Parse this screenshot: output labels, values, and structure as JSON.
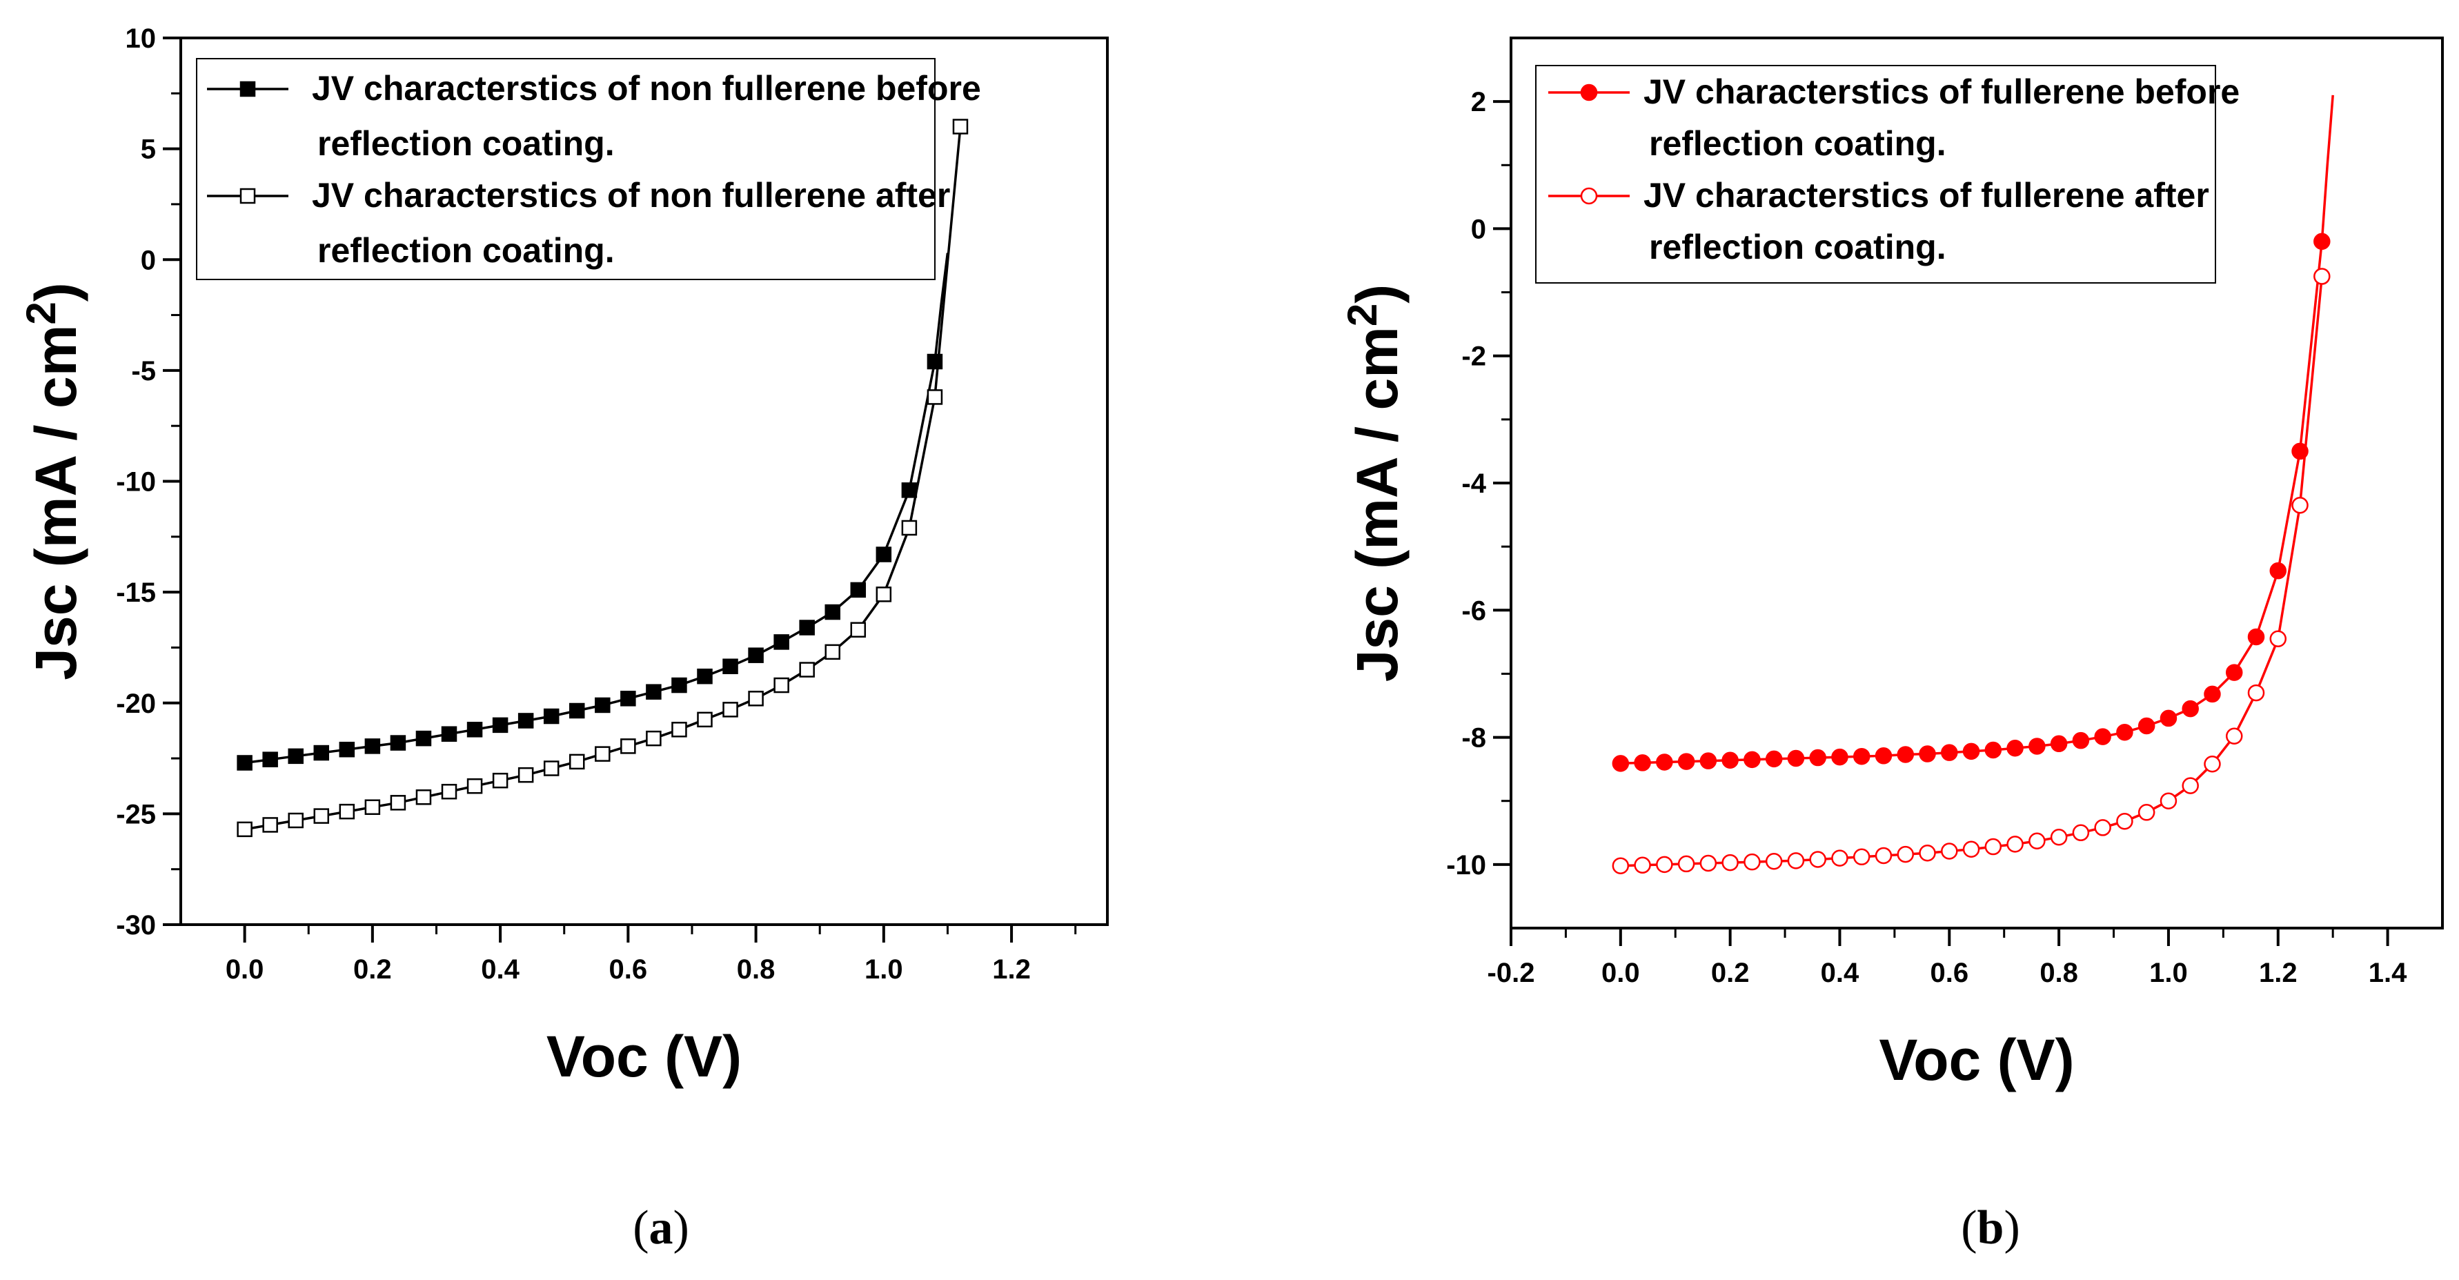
{
  "chart_data": [
    {
      "type": "line",
      "panel": "a",
      "xlabel": "Voc (V)",
      "ylabel": "Jsc (mA / cm",
      "ylabel_sup": "2",
      "ylabel_close": ")",
      "xlim": [
        -0.1,
        1.35
      ],
      "ylim": [
        -30,
        10
      ],
      "xticks": [
        0.0,
        0.2,
        0.4,
        0.6,
        0.8,
        1.0,
        1.2
      ],
      "xtick_labels": [
        "0.0",
        "0.2",
        "0.4",
        "0.6",
        "0.8",
        "1.0",
        "1.2"
      ],
      "yticks": [
        -30,
        -25,
        -20,
        -15,
        -10,
        -5,
        0,
        5,
        10
      ],
      "ytick_labels": [
        "-30",
        "-25",
        "-20",
        "-15",
        "-10",
        "-5",
        "0",
        "5",
        "10"
      ],
      "color": "#000000",
      "legend_position": "top",
      "series": [
        {
          "name_line1": "JV characterstics of non fullerene before",
          "name_line2": "reflection coating.",
          "marker": "filled-square",
          "x": [
            0.0,
            0.04,
            0.08,
            0.12,
            0.16,
            0.2,
            0.24,
            0.28,
            0.32,
            0.36,
            0.4,
            0.44,
            0.48,
            0.52,
            0.56,
            0.6,
            0.64,
            0.68,
            0.72,
            0.76,
            0.8,
            0.84,
            0.88,
            0.92,
            0.96,
            1.0,
            1.04,
            1.08
          ],
          "y": [
            -22.7,
            -22.55,
            -22.4,
            -22.25,
            -22.1,
            -21.95,
            -21.8,
            -21.6,
            -21.4,
            -21.2,
            -21.0,
            -20.8,
            -20.6,
            -20.35,
            -20.1,
            -19.8,
            -19.5,
            -19.2,
            -18.8,
            -18.35,
            -17.85,
            -17.25,
            -16.6,
            -15.9,
            -14.9,
            -13.3,
            -10.4,
            -4.6
          ],
          "curve_x": [
            1.08,
            1.09,
            1.1
          ],
          "curve_y": [
            -4.6,
            -2.0,
            0.3
          ]
        },
        {
          "name_line1": "JV characterstics of non fullerene after",
          "name_line2": "reflection coating.",
          "marker": "open-square",
          "x": [
            0.0,
            0.04,
            0.08,
            0.12,
            0.16,
            0.2,
            0.24,
            0.28,
            0.32,
            0.36,
            0.4,
            0.44,
            0.48,
            0.52,
            0.56,
            0.6,
            0.64,
            0.68,
            0.72,
            0.76,
            0.8,
            0.84,
            0.88,
            0.92,
            0.96,
            1.0,
            1.04,
            1.08,
            1.12
          ],
          "y": [
            -25.7,
            -25.5,
            -25.3,
            -25.1,
            -24.9,
            -24.7,
            -24.5,
            -24.25,
            -24.0,
            -23.75,
            -23.5,
            -23.25,
            -22.95,
            -22.65,
            -22.3,
            -21.95,
            -21.6,
            -21.2,
            -20.75,
            -20.3,
            -19.8,
            -19.2,
            -18.5,
            -17.7,
            -16.7,
            -15.1,
            -12.1,
            -6.2,
            6.0
          ],
          "curve_x": [],
          "curve_y": []
        }
      ],
      "caption_label": "a"
    },
    {
      "type": "line",
      "panel": "b",
      "xlabel": "Voc (V)",
      "ylabel": "Jsc (mA / cm",
      "ylabel_sup": "2",
      "ylabel_close": ")",
      "xlim": [
        -0.2,
        1.5
      ],
      "ylim": [
        -11,
        3
      ],
      "xticks": [
        -0.2,
        0.0,
        0.2,
        0.4,
        0.6,
        0.8,
        1.0,
        1.2,
        1.4
      ],
      "xtick_labels": [
        "-0.2",
        "0.0",
        "0.2",
        "0.4",
        "0.6",
        "0.8",
        "1.0",
        "1.2",
        "1.4"
      ],
      "yticks": [
        -10,
        -8,
        -6,
        -4,
        -2,
        0,
        2
      ],
      "ytick_labels": [
        "-10",
        "-8",
        "-6",
        "-4",
        "-2",
        "0",
        "2"
      ],
      "color": "#ff0000",
      "legend_position": "top",
      "series": [
        {
          "name_line1": "JV characterstics of fullerene before",
          "name_line2": "reflection coating.",
          "marker": "filled-circle",
          "x": [
            0.0,
            0.04,
            0.08,
            0.12,
            0.16,
            0.2,
            0.24,
            0.28,
            0.32,
            0.36,
            0.4,
            0.44,
            0.48,
            0.52,
            0.56,
            0.6,
            0.64,
            0.68,
            0.72,
            0.76,
            0.8,
            0.84,
            0.88,
            0.92,
            0.96,
            1.0,
            1.04,
            1.08,
            1.12,
            1.16,
            1.2,
            1.24,
            1.28
          ],
          "y": [
            -8.41,
            -8.4,
            -8.39,
            -8.38,
            -8.37,
            -8.36,
            -8.35,
            -8.34,
            -8.33,
            -8.32,
            -8.31,
            -8.3,
            -8.29,
            -8.27,
            -8.26,
            -8.24,
            -8.22,
            -8.2,
            -8.17,
            -8.14,
            -8.1,
            -8.05,
            -7.99,
            -7.92,
            -7.82,
            -7.7,
            -7.55,
            -7.32,
            -6.98,
            -6.42,
            -5.38,
            -3.5,
            -0.2
          ],
          "curve_x": [
            1.28,
            1.29,
            1.3
          ],
          "curve_y": [
            -0.2,
            1.0,
            2.1
          ]
        },
        {
          "name_line1": "JV characterstics of fullerene after",
          "name_line2": "reflection coating.",
          "marker": "open-circle",
          "x": [
            0.0,
            0.04,
            0.08,
            0.12,
            0.16,
            0.2,
            0.24,
            0.28,
            0.32,
            0.36,
            0.4,
            0.44,
            0.48,
            0.52,
            0.56,
            0.6,
            0.64,
            0.68,
            0.72,
            0.76,
            0.8,
            0.84,
            0.88,
            0.92,
            0.96,
            1.0,
            1.04,
            1.08,
            1.12,
            1.16,
            1.2,
            1.24,
            1.28
          ],
          "y": [
            -10.02,
            -10.01,
            -10.0,
            -9.99,
            -9.98,
            -9.97,
            -9.96,
            -9.95,
            -9.94,
            -9.92,
            -9.9,
            -9.88,
            -9.86,
            -9.84,
            -9.82,
            -9.79,
            -9.76,
            -9.72,
            -9.68,
            -9.63,
            -9.57,
            -9.5,
            -9.42,
            -9.32,
            -9.18,
            -9.0,
            -8.76,
            -8.42,
            -7.98,
            -7.3,
            -6.45,
            -4.35,
            -0.75
          ],
          "curve_x": [],
          "curve_y": []
        }
      ],
      "caption_label": "b"
    }
  ]
}
